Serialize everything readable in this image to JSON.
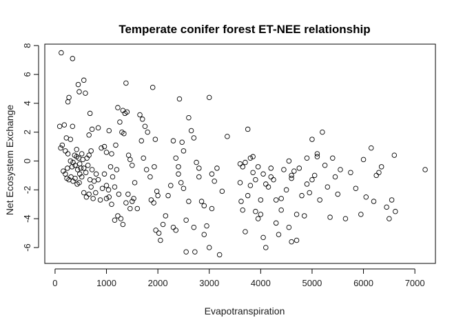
{
  "chart_data": {
    "type": "scatter",
    "title": "Temperate conifer forest ET-NEE relationship",
    "xlabel": "Evapotranspiration",
    "ylabel": "Net Ecosystem Exchange",
    "xlim": [
      -200,
      7400
    ],
    "ylim": [
      -7.1,
      8.1
    ],
    "xticks": [
      0,
      1000,
      2000,
      3000,
      4000,
      5000,
      6000,
      7000
    ],
    "yticks": [
      -6,
      -4,
      -2,
      0,
      2,
      4,
      6,
      8
    ],
    "grid": false,
    "legend": "none",
    "series": [
      {
        "marker": "open-circle",
        "color": "#000000",
        "points": [
          [
            120,
            7.5
          ],
          [
            340,
            7.1
          ],
          [
            560,
            5.6
          ],
          [
            450,
            5.3
          ],
          [
            470,
            4.8
          ],
          [
            590,
            4.7
          ],
          [
            270,
            4.4
          ],
          [
            250,
            4.1
          ],
          [
            90,
            2.4
          ],
          [
            180,
            2.5
          ],
          [
            340,
            2.4
          ],
          [
            220,
            1.6
          ],
          [
            300,
            1.5
          ],
          [
            140,
            1.1
          ],
          [
            110,
            0.9
          ],
          [
            200,
            0.7
          ],
          [
            250,
            0.5
          ],
          [
            380,
            0.4
          ],
          [
            420,
            0.3
          ],
          [
            460,
            0.2
          ],
          [
            520,
            0.5
          ],
          [
            540,
            0.1
          ],
          [
            300,
            0.0
          ],
          [
            350,
            -0.1
          ],
          [
            330,
            -0.4
          ],
          [
            390,
            -0.3
          ],
          [
            440,
            -0.6
          ],
          [
            480,
            -0.9
          ],
          [
            520,
            -1.1
          ],
          [
            560,
            -0.5
          ],
          [
            600,
            -0.8
          ],
          [
            640,
            -0.3
          ],
          [
            680,
            -1.3
          ],
          [
            720,
            -0.6
          ],
          [
            760,
            -1.4
          ],
          [
            800,
            -0.9
          ],
          [
            240,
            -0.5
          ],
          [
            270,
            -1.3
          ],
          [
            310,
            -1.1
          ],
          [
            350,
            -1.4
          ],
          [
            390,
            -1.2
          ],
          [
            430,
            -1.6
          ],
          [
            470,
            -1.5
          ],
          [
            200,
            -0.9
          ],
          [
            230,
            -1.2
          ],
          [
            160,
            -0.7
          ],
          [
            420,
            0.8
          ],
          [
            480,
            -0.2
          ],
          [
            500,
            -0.5
          ],
          [
            620,
            0.2
          ],
          [
            660,
            0.4
          ],
          [
            700,
            0.7
          ],
          [
            560,
            -2.2
          ],
          [
            610,
            -2.5
          ],
          [
            660,
            -2.3
          ],
          [
            700,
            -1.8
          ],
          [
            740,
            -2.6
          ],
          [
            790,
            -2.2
          ],
          [
            840,
            -1.3
          ],
          [
            880,
            -2.7
          ],
          [
            920,
            -1.9
          ],
          [
            960,
            -0.9
          ],
          [
            1000,
            -1.7
          ],
          [
            1040,
            -2.0
          ],
          [
            1080,
            -0.4
          ],
          [
            1120,
            -1.1
          ],
          [
            1160,
            -1.8
          ],
          [
            1200,
            -0.6
          ],
          [
            1240,
            -2.3
          ],
          [
            680,
            3.3
          ],
          [
            720,
            2.2
          ],
          [
            840,
            2.3
          ],
          [
            660,
            1.8
          ],
          [
            900,
            0.9
          ],
          [
            960,
            1.0
          ],
          [
            1000,
            0.6
          ],
          [
            1050,
            2.1
          ],
          [
            1100,
            0.5
          ],
          [
            1180,
            1.1
          ],
          [
            1220,
            3.7
          ],
          [
            1260,
            2.7
          ],
          [
            1320,
            3.5
          ],
          [
            1360,
            3.3
          ],
          [
            1400,
            3.4
          ],
          [
            1380,
            5.4
          ],
          [
            1300,
            2.0
          ],
          [
            1340,
            1.9
          ],
          [
            1430,
            0.4
          ],
          [
            1460,
            0.1
          ],
          [
            1500,
            -0.3
          ],
          [
            1550,
            -1.5
          ],
          [
            1600,
            -3.3
          ],
          [
            1420,
            -2.3
          ],
          [
            1380,
            -2.9
          ],
          [
            1460,
            -3.3
          ],
          [
            1500,
            -2.8
          ],
          [
            1530,
            -2.6
          ],
          [
            1280,
            -4.0
          ],
          [
            1320,
            -4.4
          ],
          [
            1160,
            -4.1
          ],
          [
            1220,
            -3.8
          ],
          [
            1100,
            -3.0
          ],
          [
            1050,
            -2.5
          ],
          [
            1000,
            -2.6
          ],
          [
            1650,
            3.2
          ],
          [
            1700,
            2.9
          ],
          [
            1750,
            2.4
          ],
          [
            1800,
            2.0
          ],
          [
            1680,
            1.4
          ],
          [
            1720,
            0.2
          ],
          [
            1780,
            -0.6
          ],
          [
            1850,
            -1.1
          ],
          [
            1900,
            5.1
          ],
          [
            1950,
            1.5
          ],
          [
            1930,
            -0.4
          ],
          [
            1980,
            -2.1
          ],
          [
            2000,
            -2.4
          ],
          [
            1870,
            -2.7
          ],
          [
            1920,
            -2.9
          ],
          [
            1960,
            -4.8
          ],
          [
            2020,
            -5.0
          ],
          [
            2050,
            -5.5
          ],
          [
            2100,
            -4.4
          ],
          [
            2150,
            -3.8
          ],
          [
            2200,
            -2.4
          ],
          [
            2250,
            -1.7
          ],
          [
            2300,
            -4.6
          ],
          [
            2350,
            -4.8
          ],
          [
            2400,
            -0.4
          ],
          [
            2450,
            -1.5
          ],
          [
            2500,
            -1.9
          ],
          [
            2550,
            -4.1
          ],
          [
            2420,
            4.3
          ],
          [
            2470,
            1.3
          ],
          [
            2600,
            3.0
          ],
          [
            2650,
            2.1
          ],
          [
            2700,
            1.6
          ],
          [
            2750,
            -0.1
          ],
          [
            2800,
            -1.1
          ],
          [
            2850,
            -2.8
          ],
          [
            2900,
            -3.1
          ],
          [
            2950,
            -4.5
          ],
          [
            2550,
            -6.3
          ],
          [
            2720,
            -6.3
          ],
          [
            3000,
            -6.0
          ],
          [
            3050,
            -3.3
          ],
          [
            3100,
            -1.4
          ],
          [
            3150,
            -0.5
          ],
          [
            3200,
            -6.5
          ],
          [
            3250,
            -2.1
          ],
          [
            3000,
            4.4
          ],
          [
            3050,
            -0.9
          ],
          [
            2300,
            1.4
          ],
          [
            2350,
            0.2
          ],
          [
            2400,
            -0.9
          ],
          [
            2500,
            0.7
          ],
          [
            2600,
            -2.8
          ],
          [
            2700,
            -4.6
          ],
          [
            2800,
            -0.5
          ],
          [
            2900,
            -5.1
          ],
          [
            3350,
            1.7
          ],
          [
            3600,
            -0.2
          ],
          [
            3650,
            -0.4
          ],
          [
            3700,
            -0.1
          ],
          [
            3750,
            2.2
          ],
          [
            3800,
            0.2
          ],
          [
            3850,
            -0.8
          ],
          [
            3900,
            -1.3
          ],
          [
            3600,
            -1.5
          ],
          [
            3620,
            -2.8
          ],
          [
            3650,
            -3.4
          ],
          [
            3700,
            -4.9
          ],
          [
            3750,
            -2.4
          ],
          [
            3900,
            -3.5
          ],
          [
            3950,
            -4.0
          ],
          [
            4000,
            -3.7
          ],
          [
            4050,
            -5.3
          ],
          [
            4100,
            -6.0
          ],
          [
            4150,
            -1.8
          ],
          [
            4200,
            -0.5
          ],
          [
            4250,
            -1.3
          ],
          [
            4300,
            -4.3
          ],
          [
            4350,
            -5.1
          ],
          [
            4400,
            -3.4
          ],
          [
            4450,
            -0.6
          ],
          [
            4500,
            -2.0
          ],
          [
            4550,
            0.0
          ],
          [
            4600,
            -1.2
          ],
          [
            4650,
            -0.7
          ],
          [
            4700,
            -3.7
          ],
          [
            4750,
            -0.5
          ],
          [
            4800,
            -2.4
          ],
          [
            4850,
            -3.8
          ],
          [
            4900,
            -1.6
          ],
          [
            4950,
            -2.2
          ],
          [
            5000,
            1.5
          ],
          [
            5050,
            -1.0
          ],
          [
            5100,
            0.5
          ],
          [
            5150,
            -2.7
          ],
          [
            5200,
            2.0
          ],
          [
            5250,
            -0.3
          ],
          [
            5300,
            -1.8
          ],
          [
            5350,
            -3.9
          ],
          [
            5400,
            0.2
          ],
          [
            5450,
            -1.1
          ],
          [
            5500,
            -2.3
          ],
          [
            5550,
            -0.6
          ],
          [
            5650,
            -4.0
          ],
          [
            5750,
            -0.8
          ],
          [
            5850,
            -1.9
          ],
          [
            5950,
            -3.7
          ],
          [
            6000,
            0.1
          ],
          [
            6050,
            -2.5
          ],
          [
            6150,
            0.9
          ],
          [
            6200,
            -2.8
          ],
          [
            6250,
            -1.0
          ],
          [
            6300,
            -0.8
          ],
          [
            6350,
            -0.4
          ],
          [
            6450,
            -3.2
          ],
          [
            6500,
            -4.0
          ],
          [
            6550,
            -2.7
          ],
          [
            6600,
            0.4
          ],
          [
            6620,
            -3.5
          ],
          [
            7200,
            -0.6
          ],
          [
            5000,
            -1.3
          ],
          [
            5100,
            0.3
          ],
          [
            4900,
            0.2
          ],
          [
            4600,
            -1.0
          ],
          [
            4400,
            -2.6
          ],
          [
            4200,
            -1.1
          ],
          [
            4000,
            -2.7
          ],
          [
            3800,
            -1.7
          ],
          [
            3850,
            0.3
          ],
          [
            3950,
            -0.4
          ],
          [
            4050,
            -0.9
          ],
          [
            4100,
            -1.6
          ],
          [
            4300,
            -2.7
          ],
          [
            4700,
            -5.5
          ],
          [
            4600,
            -5.6
          ],
          [
            4550,
            -4.6
          ]
        ]
      }
    ]
  }
}
